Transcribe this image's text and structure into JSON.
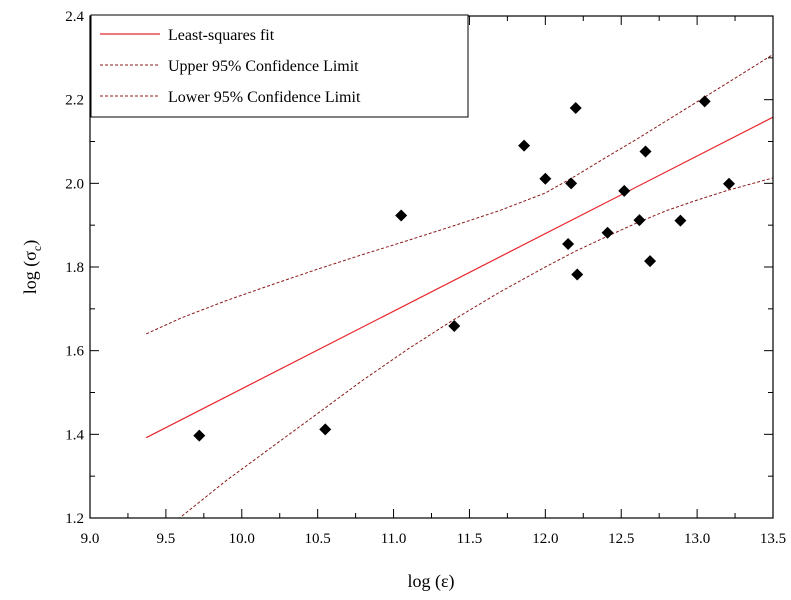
{
  "chart_data": {
    "type": "scatter",
    "xlabel": "log (ε)",
    "ylabel_main": "log (σ",
    "ylabel_sub": "c",
    "ylabel_close": ")",
    "xlim": [
      9.0,
      13.5
    ],
    "ylim": [
      1.2,
      2.4
    ],
    "xticks": [
      "9.0",
      "9.5",
      "10.0",
      "10.5",
      "11.0",
      "11.5",
      "12.0",
      "12.5",
      "13.0",
      "13.5"
    ],
    "yticks": [
      "1.2",
      "1.4",
      "1.6",
      "1.8",
      "2.0",
      "2.2",
      "2.4"
    ],
    "grid": false,
    "legend_position": "top-left",
    "legend": [
      {
        "label": "Least-squares fit",
        "color": "#e8262d",
        "style": "solid"
      },
      {
        "label": "Upper 95% Confidence Limit",
        "color": "#8b1a1a",
        "style": "dashed"
      },
      {
        "label": "Lower 95% Confidence Limit",
        "color": "#8b1a1a",
        "style": "dashed"
      }
    ],
    "points": [
      {
        "x": 9.72,
        "y": 1.397
      },
      {
        "x": 10.55,
        "y": 1.412
      },
      {
        "x": 11.05,
        "y": 1.923
      },
      {
        "x": 11.4,
        "y": 1.659
      },
      {
        "x": 11.86,
        "y": 2.09
      },
      {
        "x": 12.0,
        "y": 2.011
      },
      {
        "x": 12.15,
        "y": 1.855
      },
      {
        "x": 12.17,
        "y": 2.0
      },
      {
        "x": 12.2,
        "y": 2.18
      },
      {
        "x": 12.21,
        "y": 1.782
      },
      {
        "x": 12.41,
        "y": 1.882
      },
      {
        "x": 12.52,
        "y": 1.982
      },
      {
        "x": 12.62,
        "y": 1.912
      },
      {
        "x": 12.66,
        "y": 2.076
      },
      {
        "x": 12.69,
        "y": 1.814
      },
      {
        "x": 12.89,
        "y": 1.911
      },
      {
        "x": 13.05,
        "y": 2.196
      },
      {
        "x": 13.21,
        "y": 1.999
      }
    ],
    "fit_line": {
      "x": [
        9.37,
        13.5
      ],
      "y": [
        1.392,
        2.158
      ]
    },
    "upper_limit": {
      "x": [
        9.37,
        9.6,
        9.9,
        10.2,
        10.5,
        10.8,
        11.1,
        11.4,
        11.7,
        12.0,
        12.2,
        12.4,
        12.6,
        12.8,
        13.0,
        13.2,
        13.5
      ],
      "y": [
        1.64,
        1.678,
        1.72,
        1.758,
        1.795,
        1.83,
        1.864,
        1.899,
        1.935,
        1.977,
        2.018,
        2.062,
        2.105,
        2.15,
        2.195,
        2.24,
        2.308
      ]
    },
    "lower_limit": {
      "x": [
        9.58,
        9.9,
        10.2,
        10.5,
        10.8,
        11.1,
        11.4,
        11.7,
        12.0,
        12.2,
        12.4,
        12.6,
        12.8,
        13.0,
        13.2,
        13.5
      ],
      "y": [
        1.197,
        1.29,
        1.37,
        1.45,
        1.53,
        1.605,
        1.675,
        1.74,
        1.8,
        1.838,
        1.872,
        1.905,
        1.935,
        1.96,
        1.983,
        2.013
      ]
    }
  }
}
